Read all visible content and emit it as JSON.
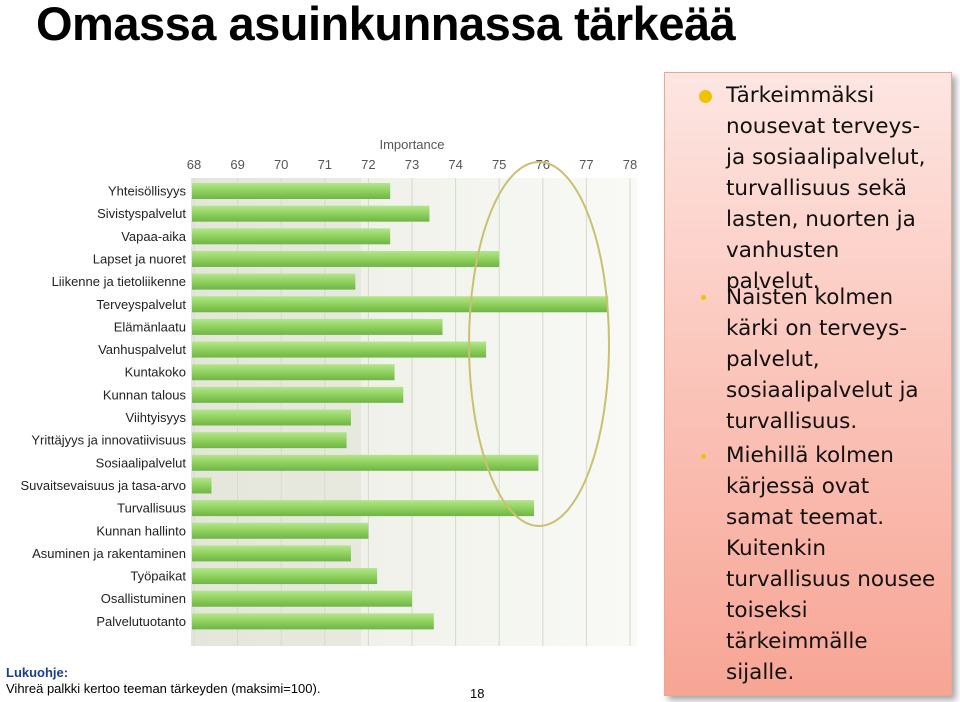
{
  "title": "Omassa asuinkunnassa tärkeää",
  "chart_data": {
    "type": "bar",
    "orientation": "horizontal",
    "title": "Importance",
    "xlim": [
      68,
      78
    ],
    "ticks": [
      "68",
      "69",
      "70",
      "71",
      "72",
      "73",
      "74",
      "75",
      "76",
      "77",
      "78"
    ],
    "categories": [
      "Yhteisöllisyys",
      "Sivistyspalvelut",
      "Vapaa-aika",
      "Lapset ja nuoret",
      "Liikenne ja tietoliikenne",
      "Terveyspalvelut",
      "Elämänlaatu",
      "Vanhuspalvelut",
      "Kuntakoko",
      "Kunnan talous",
      "Viihtyisyys",
      "Yrittäjyys ja innovatiivisuus",
      "Sosiaalipalvelut",
      "Suvaitsevaisuus ja tasa-arvo",
      "Turvallisuus",
      "Kunnan hallinto",
      "Asuminen ja rakentaminen",
      "Työpaikat",
      "Osallistuminen",
      "Palvelutuotanto"
    ],
    "values": [
      72.5,
      73.4,
      72.5,
      75.0,
      71.7,
      77.5,
      73.7,
      74.7,
      72.6,
      72.8,
      71.6,
      71.5,
      75.9,
      68.4,
      75.8,
      72.0,
      71.6,
      72.2,
      73.0,
      73.5
    ],
    "bar_color": "#8fd15e",
    "highlight": "ellipse around Terveyspalvelut, Sosiaalipalvelut, Turvallisuus"
  },
  "legend_note": {
    "heading": "Lukuohje:",
    "text": "Vihreä palkki kertoo teeman tärkeyden (maksimi=100)."
  },
  "slide_number": "18",
  "bullets": [
    {
      "level": 1,
      "lines": [
        "Tärkeimmäksi",
        "nousevat terveys-",
        "ja sosiaalipalvelut,",
        "turvallisuus sekä",
        "lasten, nuorten ja",
        "vanhusten",
        "palvelut."
      ]
    },
    {
      "level": 2,
      "lines": [
        "Naisten kolmen",
        "kärki on terveys-",
        "palvelut,",
        "sosiaalipalvelut ja",
        "turvallisuus."
      ]
    },
    {
      "level": 2,
      "lines": [
        "Miehillä kolmen",
        "kärjessä ovat",
        "samat teemat.",
        "Kuitenkin",
        "turvallisuus nousee",
        "toiseksi",
        "tärkeimmälle",
        "sijalle."
      ]
    }
  ],
  "colors": {
    "bullet": "#f0c300",
    "textbox_top": "#fde6e2",
    "textbox_bottom": "#f7a595",
    "ellipse": "#c9c070"
  }
}
